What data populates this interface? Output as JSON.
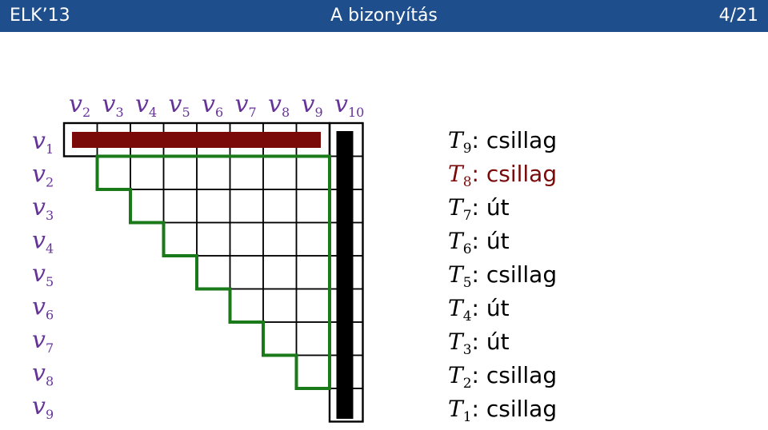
{
  "header": {
    "left": "ELK’13",
    "title": "A bizonyítás",
    "page": "4/21"
  },
  "colors": {
    "header_bg": "#1f4e8c",
    "label": "#663399",
    "highlight": "#7a0a0a",
    "path": "#1a7a1a",
    "bar": "#000000"
  },
  "columns": [
    "v2",
    "v3",
    "v4",
    "v5",
    "v6",
    "v7",
    "v8",
    "v9",
    "v10"
  ],
  "rows": [
    "v1",
    "v2",
    "v3",
    "v4",
    "v5",
    "v6",
    "v7",
    "v8",
    "v9"
  ],
  "trees": [
    {
      "name": "T",
      "index": "9",
      "colon": ":",
      "label": "csillag",
      "color": "#000000"
    },
    {
      "name": "T",
      "index": "8",
      "colon": ":",
      "label": "csillag",
      "color": "#7a0a0a"
    },
    {
      "name": "T",
      "index": "7",
      "colon": ":",
      "label": "út",
      "color": "#000000"
    },
    {
      "name": "T",
      "index": "6",
      "colon": ":",
      "label": "út",
      "color": "#000000"
    },
    {
      "name": "T",
      "index": "5",
      "colon": ":",
      "label": "csillag",
      "color": "#000000"
    },
    {
      "name": "T",
      "index": "4",
      "colon": ":",
      "label": "út",
      "color": "#000000"
    },
    {
      "name": "T",
      "index": "3",
      "colon": ":",
      "label": "út",
      "color": "#000000"
    },
    {
      "name": "T",
      "index": "2",
      "colon": ":",
      "label": "csillag",
      "color": "#000000"
    },
    {
      "name": "T",
      "index": "1",
      "colon": ":",
      "label": "csillag",
      "color": "#000000"
    }
  ]
}
